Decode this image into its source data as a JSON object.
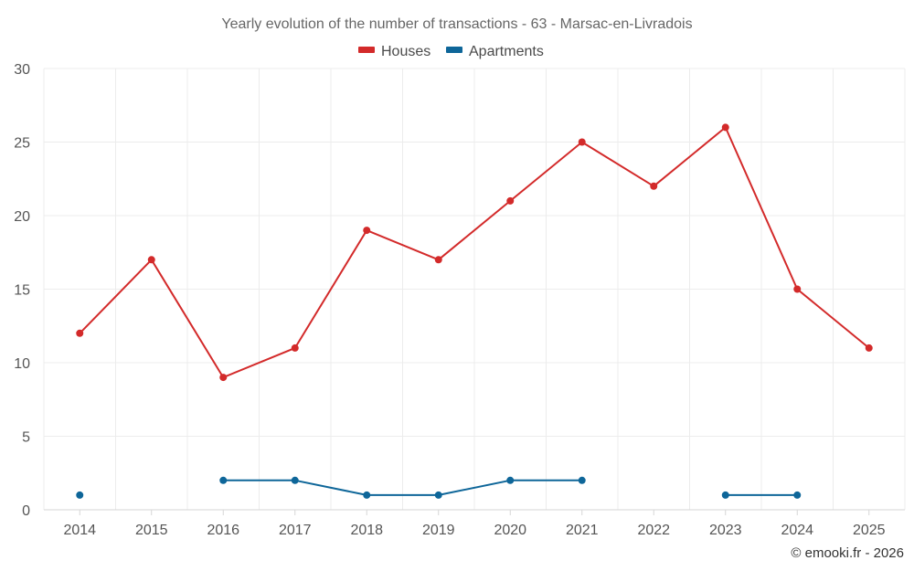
{
  "chart_data": {
    "type": "line",
    "title": "Yearly evolution of the number of transactions - 63 - Marsac-en-Livradois",
    "xlabel": "",
    "ylabel": "",
    "ylim": [
      0,
      30
    ],
    "y_ticks": [
      0,
      5,
      10,
      15,
      20,
      25,
      30
    ],
    "grid": true,
    "legend_position": "top-center",
    "categories": [
      "2014",
      "2015",
      "2016",
      "2017",
      "2018",
      "2019",
      "2020",
      "2021",
      "2022",
      "2023",
      "2024",
      "2025"
    ],
    "series": [
      {
        "name": "Houses",
        "color": "#d32a2a",
        "values": [
          12,
          17,
          9,
          11,
          19,
          17,
          21,
          25,
          22,
          26,
          15,
          11
        ]
      },
      {
        "name": "Apartments",
        "color": "#0e6699",
        "values": [
          1,
          null,
          2,
          2,
          1,
          1,
          2,
          2,
          null,
          1,
          1,
          null
        ]
      }
    ]
  },
  "credit": "© emooki.fr - 2026"
}
